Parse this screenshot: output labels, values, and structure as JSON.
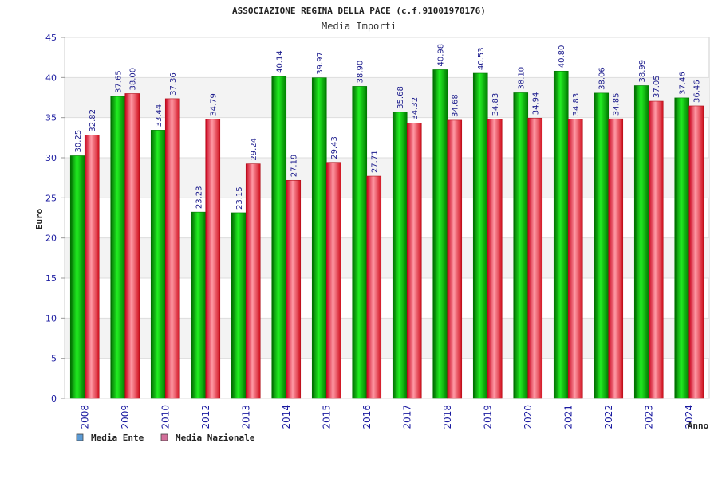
{
  "chart_data": {
    "type": "bar",
    "title": "ASSOCIAZIONE REGINA DELLA PACE (c.f.91001970176)",
    "subtitle": "Media Importi",
    "ylabel": "Euro",
    "xlabel": "Anno",
    "ylim": [
      0,
      45
    ],
    "yticks": [
      "0",
      "5",
      "10",
      "15",
      "20",
      "25",
      "30",
      "35",
      "40",
      "45"
    ],
    "grid": true,
    "legend_position": "bottom-left",
    "categories": [
      "2008",
      "2009",
      "2010",
      "2012",
      "2013",
      "2014",
      "2015",
      "2016",
      "2017",
      "2018",
      "2019",
      "2020",
      "2021",
      "2022",
      "2023",
      "2024"
    ],
    "series": [
      {
        "name": "Media Ente",
        "color": "#00b300",
        "legend_color": "#5b9bd5",
        "values": [
          30.25,
          37.65,
          33.44,
          23.23,
          23.15,
          40.14,
          39.97,
          38.9,
          35.68,
          40.98,
          40.53,
          38.1,
          40.8,
          38.06,
          38.99,
          37.46
        ],
        "labels": [
          "30.25",
          "37.65",
          "33.44",
          "23.23",
          "23.15",
          "40.14",
          "39.97",
          "38.90",
          "35.68",
          "40.98",
          "40.53",
          "38.10",
          "40.80",
          "38.06",
          "38.99",
          "37.46"
        ]
      },
      {
        "name": "Media Nazionale",
        "color": "#e8202a",
        "legend_color": "#d36f9a",
        "values": [
          32.82,
          38.0,
          37.36,
          34.79,
          29.24,
          27.19,
          29.43,
          27.71,
          34.32,
          34.68,
          34.83,
          34.94,
          34.83,
          34.85,
          37.05,
          36.46
        ],
        "labels": [
          "32.82",
          "38.00",
          "37.36",
          "34.79",
          "29.24",
          "27.19",
          "29.43",
          "27.71",
          "34.32",
          "34.68",
          "34.83",
          "34.94",
          "34.83",
          "34.85",
          "37.05",
          "36.46"
        ]
      }
    ]
  }
}
